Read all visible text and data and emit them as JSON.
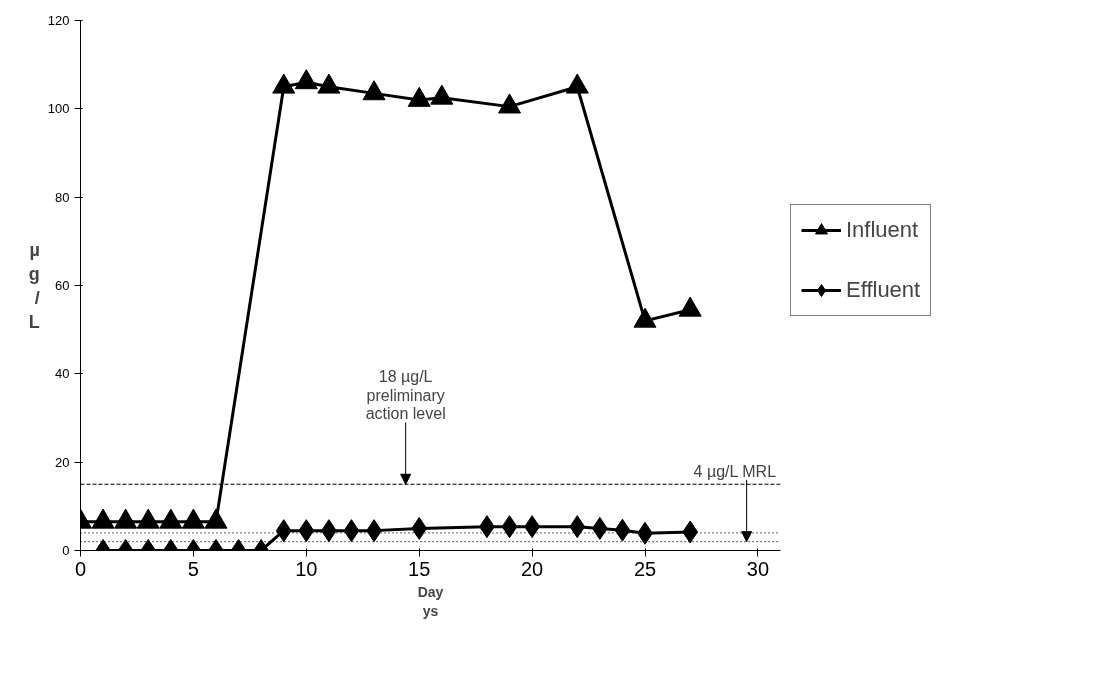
{
  "chart_data": {
    "type": "line",
    "xlabel": "Day\nys",
    "ylabel": "µg/L",
    "xlim": [
      0,
      31
    ],
    "ylim": [
      0,
      120
    ],
    "xticks": [
      0,
      5,
      10,
      15,
      20,
      25,
      30
    ],
    "yticks": [
      0,
      20,
      40,
      60,
      80,
      100,
      120
    ],
    "grid": false,
    "legend": "right",
    "line_style": "solid",
    "series": [
      {
        "name": "Influent",
        "color": "#000000",
        "marker": "triangle",
        "x": [
          0,
          1,
          2,
          3,
          4,
          5,
          6,
          9,
          10,
          11,
          13,
          15,
          16,
          19,
          22,
          25,
          27
        ],
        "values": [
          6.5,
          6.5,
          6.5,
          6.5,
          6.5,
          6.5,
          6.5,
          105,
          106,
          105,
          103.5,
          102,
          102.5,
          100.5,
          105,
          52,
          54.5
        ]
      },
      {
        "name": "Effluent",
        "color": "#000000",
        "marker": "diamond",
        "x": [
          1,
          2,
          3,
          4,
          5,
          6,
          7,
          8,
          9,
          10,
          11,
          12,
          13,
          15,
          18,
          19,
          20,
          22,
          23,
          24,
          25,
          27
        ],
        "values": [
          0,
          0,
          0,
          0,
          0,
          0,
          0,
          0,
          4.5,
          4.5,
          4.5,
          4.5,
          4.5,
          5,
          5.4,
          5.4,
          5.4,
          5.4,
          5,
          4.6,
          3.9,
          4.2
        ]
      }
    ],
    "ref_lines": [
      {
        "axis": "y",
        "value": 15,
        "line_style": "dashed",
        "color": "#000000"
      },
      {
        "axis": "y",
        "value": 4,
        "line_style": "dotted",
        "color": "#000000"
      },
      {
        "axis": "y",
        "value": 2,
        "line_style": "dotted",
        "color": "#000000"
      }
    ],
    "annotations": [
      {
        "text": "18 µg/L\npreliminary\naction level",
        "x": 14.4,
        "y": 15
      },
      {
        "text": "4 µg/L MRL",
        "x": 29.5,
        "y": 2
      }
    ]
  }
}
